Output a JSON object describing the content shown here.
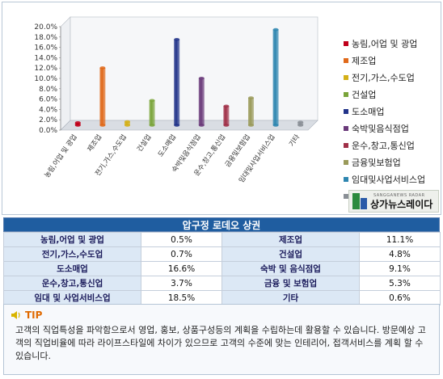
{
  "colors": {
    "bar_colors": [
      "#c0001a",
      "#e0691a",
      "#d4b018",
      "#7aa43a",
      "#22348a",
      "#6a3a7a",
      "#a03048",
      "#9a9a5a",
      "#2e86b0",
      "#8a8f96"
    ],
    "table_header_bg": "#1f5da0",
    "label_cell_bg": "#dce8f5",
    "tip_accent": "#e06a00"
  },
  "chart_data": {
    "type": "bar",
    "title": "",
    "xlabel": "",
    "ylabel": "",
    "ylim": [
      0,
      20
    ],
    "yticks": [
      "0.0%",
      "2.0%",
      "4.0%",
      "6.0%",
      "8.0%",
      "10.0%",
      "12.0%",
      "14.0%",
      "16.0%",
      "18.0%",
      "20.0%"
    ],
    "categories": [
      "농림,어업 및 광업",
      "제조업",
      "전기,가스,수도업",
      "건설업",
      "도소매업",
      "숙박및음식점업",
      "운수,창고,통신업",
      "금융및보험업",
      "임대및사업서비스업",
      "기타"
    ],
    "values": [
      0.5,
      11.1,
      0.7,
      4.8,
      16.6,
      9.1,
      3.7,
      5.3,
      18.5,
      0.6
    ],
    "legend": [
      "농림,어업 및 광업",
      "제조업",
      "전기,가스,수도업",
      "건설업",
      "도소매업",
      "숙박및음식점업",
      "운수,창고,통신업",
      "금융및보험업",
      "임대및사업서비스업",
      "기타"
    ],
    "legend_position": "right",
    "grid": false
  },
  "brand": {
    "name": "상가뉴스레이다",
    "sub": "SANGGANEWS RADAR"
  },
  "table": {
    "title": "압구정 로데오 상권",
    "rows": [
      [
        "농림,어업 및 광업",
        "0.5%",
        "제조업",
        "11.1%"
      ],
      [
        "전기,가스,수도업",
        "0.7%",
        "건설업",
        "4.8%"
      ],
      [
        "도소매업",
        "16.6%",
        "숙박 및 음식점업",
        "9.1%"
      ],
      [
        "운수,창고,통신업",
        "3.7%",
        "금융 및 보험업",
        "5.3%"
      ],
      [
        "임대 및 사업서비스업",
        "18.5%",
        "기타",
        "0.6%"
      ]
    ]
  },
  "tip": {
    "label": "TIP",
    "text": "고객의 직업특성을 파악함으로서 영업, 홍보, 상품구성등의 계획을 수립하는데 활용할 수 있습니다. 방문예상 고객의 직업비율에 따라 라이프스타일에 차이가 있으므로 고객의 수준에 맞는 인테리어, 접객서비스를 계획 할 수 있습니다."
  }
}
